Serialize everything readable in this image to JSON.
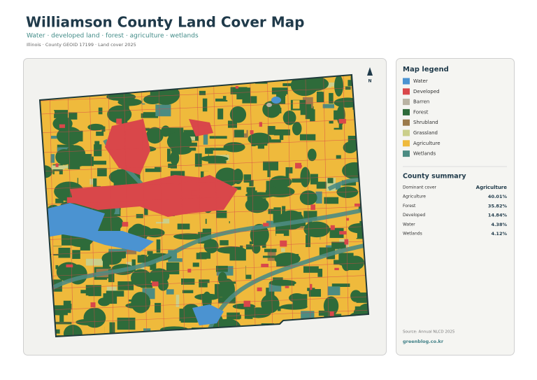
{
  "header": {
    "title": "Williamson County Land Cover Map",
    "subtitle": "Water · developed land · forest · agriculture · wetlands",
    "meta": "Illinois · County GEOID 17199 · Land cover 2025"
  },
  "map": {
    "north": "N"
  },
  "legend": {
    "title": "Map legend",
    "items": [
      {
        "label": "Water",
        "color": "#4b93d1"
      },
      {
        "label": "Developed",
        "color": "#d9474a"
      },
      {
        "label": "Barren",
        "color": "#b9b3a3"
      },
      {
        "label": "Forest",
        "color": "#2e6b3a"
      },
      {
        "label": "Shrubland",
        "color": "#9b7a4b"
      },
      {
        "label": "Grassland",
        "color": "#cbcf8b"
      },
      {
        "label": "Agriculture",
        "color": "#efba3c"
      },
      {
        "label": "Wetlands",
        "color": "#4c8c82"
      }
    ]
  },
  "summary": {
    "title": "County summary",
    "rows": [
      [
        "Dominant cover",
        "Agriculture"
      ],
      [
        "Agriculture",
        "40.01%"
      ],
      [
        "Forest",
        "35.82%"
      ],
      [
        "Developed",
        "14.84%"
      ],
      [
        "Water",
        "4.38%"
      ],
      [
        "Wetlands",
        "4.12%"
      ]
    ]
  },
  "footer": {
    "source": "Source: Annual NLCD 2025",
    "site": "greenblog.co.kr"
  }
}
